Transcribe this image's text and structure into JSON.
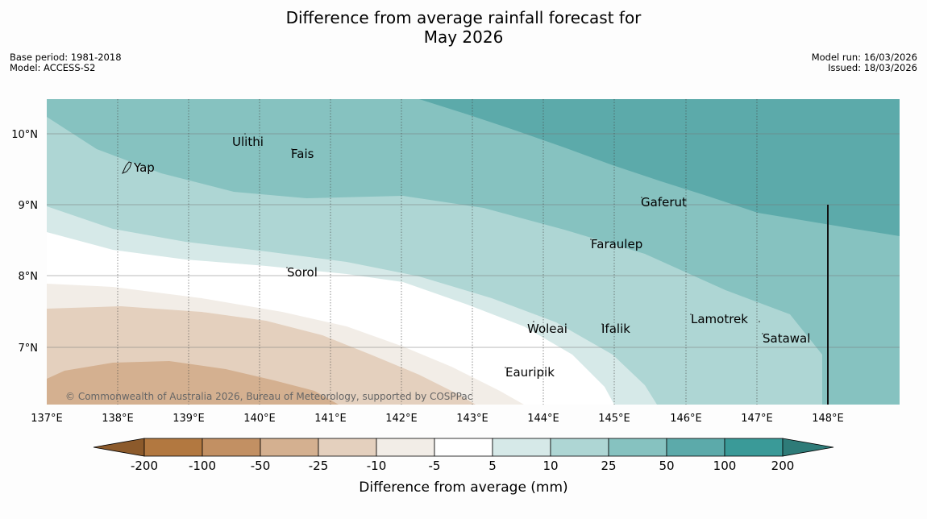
{
  "title_line1": "Difference from average rainfall forecast for",
  "title_line2": "May 2026",
  "base_period": "Base period: 1981-2018",
  "model": "Model: ACCESS-S2",
  "model_run": "Model run: 16/03/2026",
  "issued": "Issued: 18/03/2026",
  "copyright": "© Commonwealth of Australia 2026, Bureau of Meteorology, supported by COSPPac",
  "lon_ticks": [
    "137°E",
    "138°E",
    "139°E",
    "140°E",
    "141°E",
    "142°E",
    "143°E",
    "144°E",
    "145°E",
    "146°E",
    "147°E",
    "148°E"
  ],
  "lat_ticks": [
    "10°N",
    "9°N",
    "8°N",
    "7°N"
  ],
  "places": {
    "yap": "Yap",
    "ulithi": "Ulithi",
    "fais": "Fais",
    "gaferut": "Gaferut",
    "faraulep": "Faraulep",
    "sorol": "Sorol",
    "woleai": "Woleai",
    "ifalik": "Ifalik",
    "lamotrek": "Lamotrek",
    "satawal": "Satawal",
    "eauripik": "Eauripik"
  },
  "colorbar": {
    "label": "Difference from average (mm)",
    "ticks": [
      "-200",
      "-100",
      "-50",
      "-25",
      "-10",
      "-5",
      "5",
      "10",
      "25",
      "50",
      "100",
      "200"
    ],
    "colors": [
      "#8c5a2b",
      "#b27840",
      "#c29063",
      "#d4b090",
      "#e4d0be",
      "#f2ede7",
      "#ffffff",
      "#d6e9e8",
      "#aed6d4",
      "#86c2c0",
      "#5caaaa",
      "#3a9a98",
      "#2e7b78"
    ]
  }
}
